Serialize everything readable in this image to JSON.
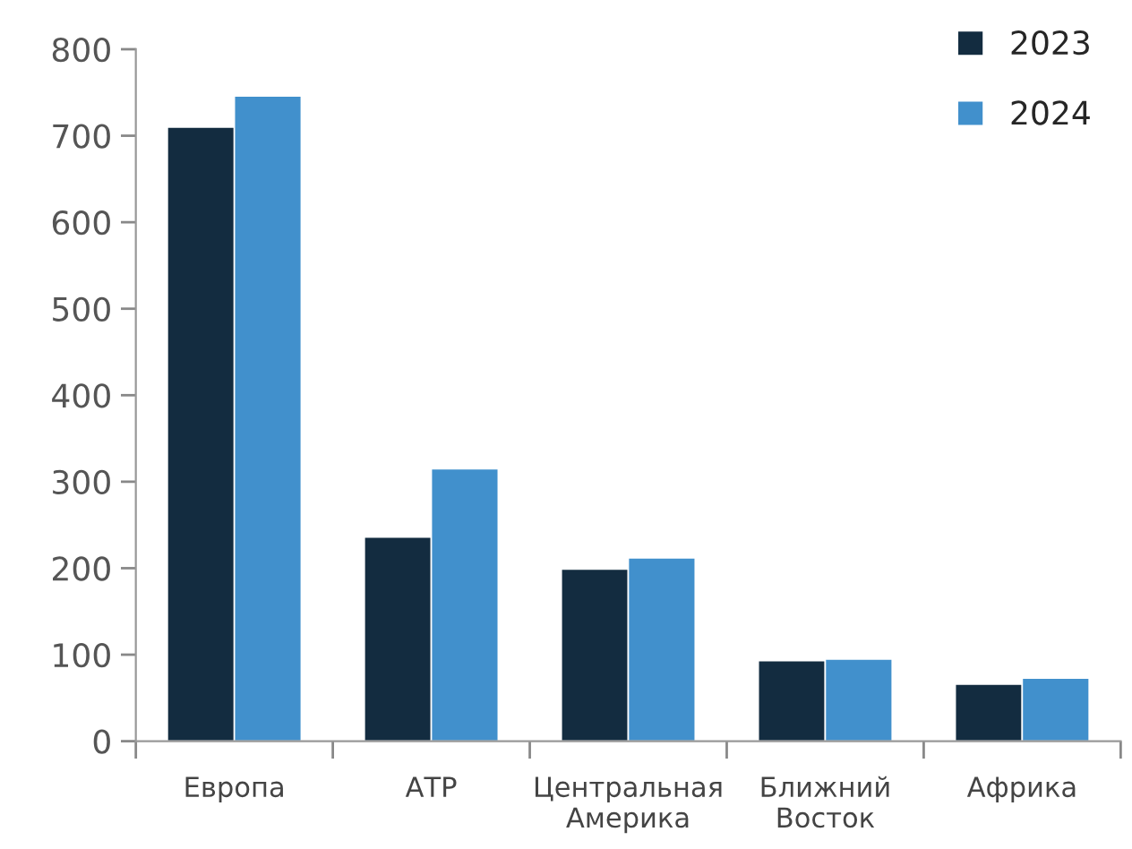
{
  "chart_data": {
    "type": "bar",
    "categories": [
      "Европа",
      "АТР",
      "Центральная Америка",
      "Ближний Восток",
      "Африка"
    ],
    "series": [
      {
        "name": "2023",
        "color": "#132c40",
        "values": [
          710,
          236,
          199,
          93,
          66
        ]
      },
      {
        "name": "2024",
        "color": "#4190cc",
        "values": [
          746,
          315,
          212,
          95,
          73
        ]
      }
    ],
    "ylim": [
      0,
      800
    ],
    "yticks": [
      0,
      100,
      200,
      300,
      400,
      500,
      600,
      700,
      800
    ],
    "grid": false,
    "legend": "top right"
  }
}
